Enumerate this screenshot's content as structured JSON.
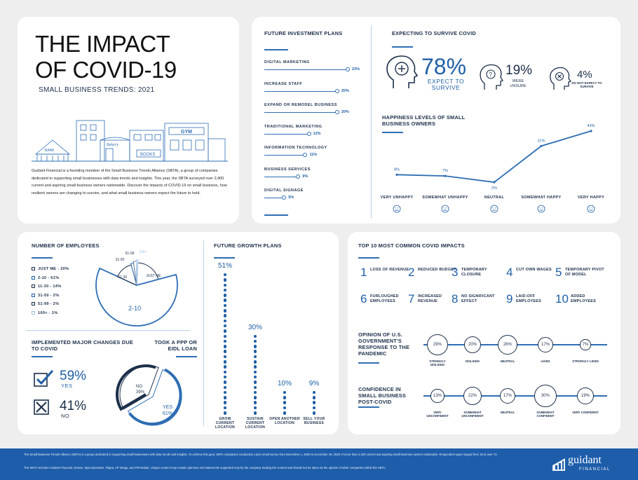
{
  "title": {
    "line1": "THE IMPACT",
    "line2": "OF COVID-19",
    "subtitle": "SMALL BUSINESS TRENDS: 2021",
    "intro": "Guidant Financial is a founding member of the Small Business Trends Alliance (SBTA), a group of companies dedicated to supporting small businesses with data trends and insights. This year, the SBTA surveyed over 2,400 current and aspiring small business owners nationwide. Discover the impacts of COVID-19 on small business, how resilient owners are changing to survive, and what small business owners expect the future to hold.",
    "illustration_signs": {
      "bank": "BANK",
      "bakery": "Bakery",
      "gym": "GYM",
      "books": "BOOKS"
    }
  },
  "investment": {
    "heading": "FUTURE INVESTMENT PLANS",
    "items": [
      {
        "label": "DIGITAL MARKETING",
        "value": "23%"
      },
      {
        "label": "INCREASE STAFF",
        "value": "20%"
      },
      {
        "label": "EXPAND OR REMODEL BUSINESS",
        "value": "20%"
      },
      {
        "label": "TRADITIONAL MARKETING",
        "value": "12%"
      },
      {
        "label": "INFORMATION TECHNOLOGY",
        "value": "11%"
      },
      {
        "label": "BUSINESS SERVICES",
        "value": "9%"
      },
      {
        "label": "DIGITAL SIGNAGE",
        "value": "5%"
      }
    ]
  },
  "survive": {
    "heading": "EXPECTING TO SURVIVE COVID",
    "expect_pct": "78%",
    "expect_label": "EXPECT TO SURVIVE",
    "unsure_pct": "19%",
    "unsure_label": "WERE UNSURE",
    "not_pct": "4%",
    "not_label": "DO NOT EXPECT TO SURVIVE"
  },
  "happiness": {
    "heading": "HAPPINESS LEVELS OF SMALL BUSINESS OWNERS",
    "labels": [
      "VERY UNHAPPY",
      "SOMEWHAT UNHAPPY",
      "NEUTRAL",
      "SOMEWHAT HAPPY",
      "VERY HAPPY"
    ],
    "value_labels": [
      "8%",
      "7%",
      "2%",
      "31%",
      "43%"
    ]
  },
  "employees": {
    "heading": "NUMBER OF EMPLOYEES",
    "legend": [
      "JUST ME - 20%",
      "2-10 - 61%",
      "11-30 - 14%",
      "31-50 - 2%",
      "51-99 - 2%",
      "100+ - 1%"
    ],
    "slice_labels": [
      "JUST ME",
      "2-10",
      "11-30",
      "31-50",
      "51-99",
      "100+"
    ]
  },
  "changes": {
    "heading": "IMPLEMENTED MAJOR CHANGES DUE TO COVID",
    "yes_pct": "59%",
    "yes_label": "YES",
    "no_pct": "41%",
    "no_label": "NO"
  },
  "ppp": {
    "heading": "TOOK A PPP OR EIDL LOAN",
    "no_label": "NO",
    "no_pct": "39%",
    "yes_label": "YES",
    "yes_pct": "61%"
  },
  "growth": {
    "heading": "FUTURE GROWTH PLANS",
    "items": [
      {
        "pct": "51%",
        "label": "GROW CURRENT LOCATION"
      },
      {
        "pct": "30%",
        "label": "SUSTAIN CURRENT LOCATION"
      },
      {
        "pct": "10%",
        "label": "OPEN ANOTHER LOCATION"
      },
      {
        "pct": "9%",
        "label": "SELL YOUR BUSINESS"
      }
    ]
  },
  "impacts": {
    "heading": "TOP 10 MOST COMMON COVID IMPACTS",
    "items": [
      {
        "num": "1",
        "text": "LOSS OF REVENUE"
      },
      {
        "num": "2",
        "text": "REDUCED BUDGET"
      },
      {
        "num": "3",
        "text": "TEMPORARY CLOSURE"
      },
      {
        "num": "4",
        "text": "CUT OWN WAGES"
      },
      {
        "num": "5",
        "text": "TEMPORARY PIVOT OF MODEL"
      },
      {
        "num": "6",
        "text": "FURLOUGHED EMPLOYEES"
      },
      {
        "num": "7",
        "text": "INCREASED REVENUE"
      },
      {
        "num": "8",
        "text": "NO SIGNIFICANT EFFECT"
      },
      {
        "num": "9",
        "text": "LAID-OFF EMPLOYEES"
      },
      {
        "num": "10",
        "text": "ADDED EMPLOYEES"
      }
    ]
  },
  "opinion": {
    "heading": "OPINION OF U.S. GOVERNMENT'S RESPONSE TO THE PANDEMIC",
    "items": [
      {
        "pct": "29%",
        "label": "STRONGLY DISLIKED"
      },
      {
        "pct": "20%",
        "label": "DISLIKED"
      },
      {
        "pct": "26%",
        "label": "NEUTRAL"
      },
      {
        "pct": "17%",
        "label": "LIKED"
      },
      {
        "pct": "7%",
        "label": "STRONGLY LIKED"
      }
    ]
  },
  "confidence": {
    "heading": "CONFIDENCE IN SMALL BUSINESS POST-COVID",
    "items": [
      {
        "pct": "13%",
        "label": "VERY UNCONFIDENT"
      },
      {
        "pct": "22%",
        "label": "SOMEWHAT UNCONFIDENT"
      },
      {
        "pct": "17%",
        "label": "NEUTRAL"
      },
      {
        "pct": "30%",
        "label": "SOMEWHAT CONFIDENT"
      },
      {
        "pct": "19%",
        "label": "VERY CONFIDENT"
      }
    ]
  },
  "footer": {
    "line1": "The Small Business Trends Alliance (SBTA) is a group dedicated to supporting small businesses with data trends and insights. To achieve this goal, SBTA companies conducted a joint email survey from December 1, 2020 to December 18, 2020 of more than 2,400 current and aspiring small business owners nationwide. Respondent ages ranged from 18 to over 70.",
    "line2": "The SBTA includes Guidant Financial, Deluxe, MyCorporation, Flippa, AP Intego, and FRANdata. Unique content may contain opinions and statements supported only by the company hosting the content and should not be taken as the opinion of other companies within the SBTA.",
    "logo_main": "guidant",
    "logo_sub": "FINANCIAL"
  },
  "colors": {
    "accent": "#1f5fa6",
    "navy": "#1c2f4a",
    "footer": "#1d5daa",
    "background": "#eeeeee"
  },
  "chart_data": [
    {
      "type": "bar",
      "title": "FUTURE INVESTMENT PLANS",
      "categories": [
        "DIGITAL MARKETING",
        "INCREASE STAFF",
        "EXPAND OR REMODEL BUSINESS",
        "TRADITIONAL MARKETING",
        "INFORMATION TECHNOLOGY",
        "BUSINESS SERVICES",
        "DIGITAL SIGNAGE"
      ],
      "values": [
        23,
        20,
        20,
        12,
        11,
        9,
        5
      ]
    },
    {
      "type": "line",
      "title": "HAPPINESS LEVELS OF SMALL BUSINESS OWNERS",
      "categories": [
        "VERY UNHAPPY",
        "SOMEWHAT UNHAPPY",
        "NEUTRAL",
        "SOMEWHAT HAPPY",
        "VERY HAPPY"
      ],
      "values": [
        8,
        7,
        2,
        31,
        43
      ]
    },
    {
      "type": "pie",
      "title": "NUMBER OF EMPLOYEES",
      "categories": [
        "JUST ME",
        "2-10",
        "11-30",
        "31-50",
        "51-99",
        "100+"
      ],
      "values": [
        20,
        61,
        14,
        2,
        2,
        1
      ]
    },
    {
      "type": "pie",
      "title": "TOOK A PPP OR EIDL LOAN",
      "categories": [
        "NO",
        "YES"
      ],
      "values": [
        39,
        61
      ]
    },
    {
      "type": "bar",
      "title": "FUTURE GROWTH PLANS",
      "categories": [
        "GROW CURRENT LOCATION",
        "SUSTAIN CURRENT LOCATION",
        "OPEN ANOTHER LOCATION",
        "SELL YOUR BUSINESS"
      ],
      "values": [
        51,
        30,
        10,
        9
      ]
    },
    {
      "type": "bar",
      "title": "OPINION OF U.S. GOVERNMENT'S RESPONSE TO THE PANDEMIC",
      "categories": [
        "STRONGLY DISLIKED",
        "DISLIKED",
        "NEUTRAL",
        "LIKED",
        "STRONGLY LIKED"
      ],
      "values": [
        29,
        20,
        26,
        17,
        7
      ]
    },
    {
      "type": "bar",
      "title": "CONFIDENCE IN SMALL BUSINESS POST-COVID",
      "categories": [
        "VERY UNCONFIDENT",
        "SOMEWHAT UNCONFIDENT",
        "NEUTRAL",
        "SOMEWHAT CONFIDENT",
        "VERY CONFIDENT"
      ],
      "values": [
        13,
        22,
        17,
        30,
        19
      ]
    }
  ]
}
